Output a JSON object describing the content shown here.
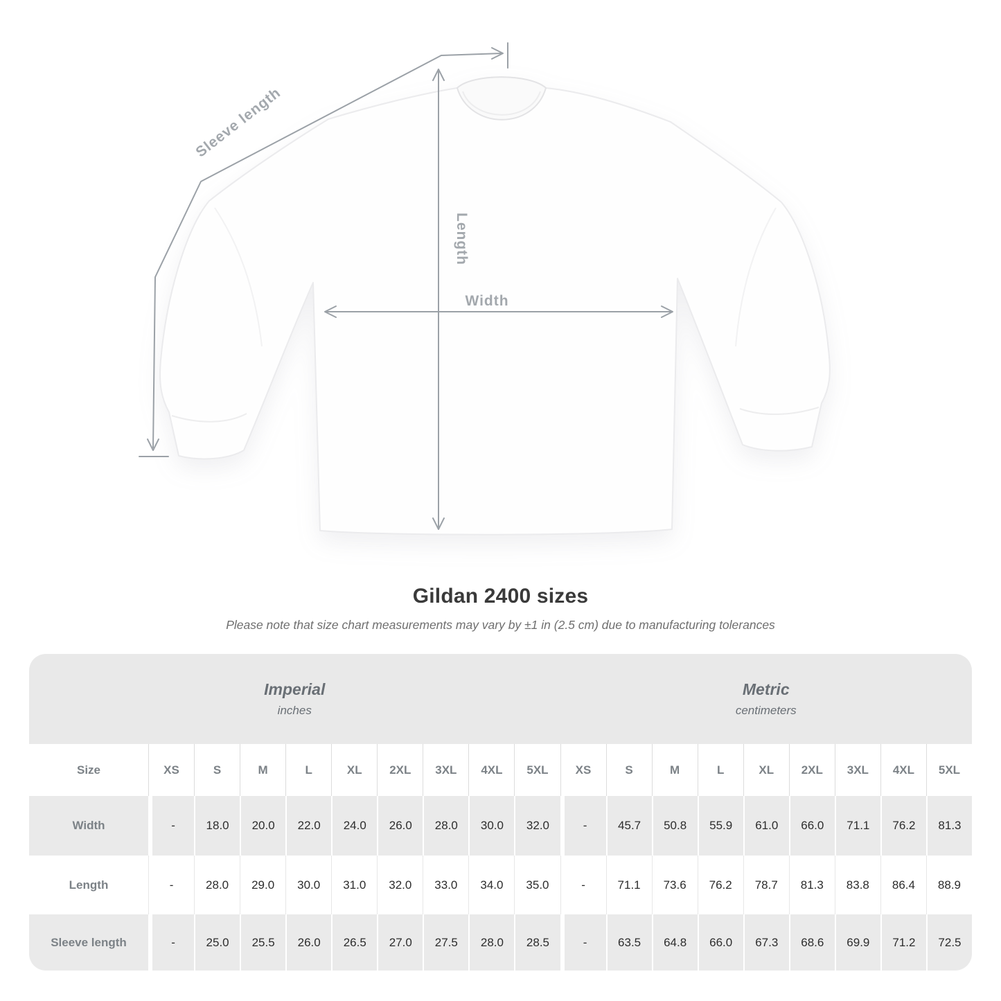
{
  "diagram": {
    "sleeve_label": "Sleeve length",
    "length_label": "Length",
    "width_label": "Width"
  },
  "header": {
    "title": "Gildan 2400 sizes",
    "subtitle": "Please note that size chart measurements may vary by ±1 in (2.5 cm) due to manufacturing tolerances"
  },
  "chart_data": {
    "type": "table",
    "title": "Gildan 2400 sizes",
    "note": "Please note that size chart measurements may vary by ±1 in (2.5 cm) due to manufacturing tolerances",
    "unit_groups": [
      {
        "label": "Imperial",
        "unit": "inches"
      },
      {
        "label": "Metric",
        "unit": "centimeters"
      }
    ],
    "size_header": "Size",
    "sizes": [
      "XS",
      "S",
      "M",
      "L",
      "XL",
      "2XL",
      "3XL",
      "4XL",
      "5XL"
    ],
    "measurements": [
      {
        "label": "Width",
        "imperial": [
          "-",
          "18.0",
          "20.0",
          "22.0",
          "24.0",
          "26.0",
          "28.0",
          "30.0",
          "32.0"
        ],
        "metric": [
          "-",
          "45.7",
          "50.8",
          "55.9",
          "61.0",
          "66.0",
          "71.1",
          "76.2",
          "81.3"
        ]
      },
      {
        "label": "Length",
        "imperial": [
          "-",
          "28.0",
          "29.0",
          "30.0",
          "31.0",
          "32.0",
          "33.0",
          "34.0",
          "35.0"
        ],
        "metric": [
          "-",
          "71.1",
          "73.6",
          "76.2",
          "78.7",
          "81.3",
          "83.8",
          "86.4",
          "88.9"
        ]
      },
      {
        "label": "Sleeve length",
        "imperial": [
          "-",
          "25.0",
          "25.5",
          "26.0",
          "26.5",
          "27.0",
          "27.5",
          "28.0",
          "28.5"
        ],
        "metric": [
          "-",
          "63.5",
          "64.8",
          "66.0",
          "67.3",
          "68.6",
          "69.9",
          "71.2",
          "72.5"
        ]
      }
    ]
  },
  "colors": {
    "table_band": "#e9e9e9",
    "muted_text": "#7c8287",
    "value_text": "#2d2d2d",
    "measure_line": "#9ba1a7",
    "measure_label": "#a3a8ad"
  }
}
